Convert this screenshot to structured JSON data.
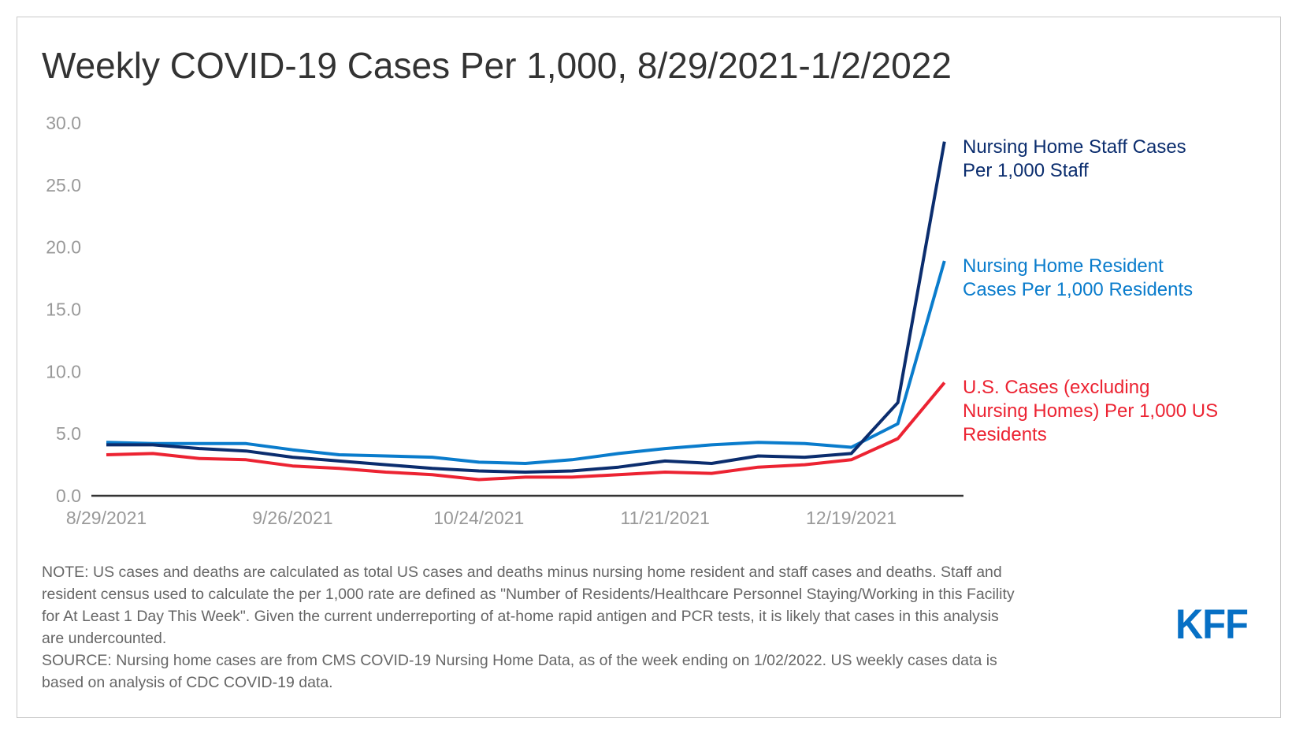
{
  "chart_data": {
    "type": "line",
    "title": "Weekly COVID-19 Cases Per 1,000, 8/29/2021-1/2/2022",
    "x": [
      "8/29/2021",
      "9/5/2021",
      "9/12/2021",
      "9/19/2021",
      "9/26/2021",
      "10/3/2021",
      "10/10/2021",
      "10/17/2021",
      "10/24/2021",
      "10/31/2021",
      "11/7/2021",
      "11/14/2021",
      "11/21/2021",
      "11/28/2021",
      "12/5/2021",
      "12/12/2021",
      "12/19/2021",
      "12/26/2021",
      "1/2/2022"
    ],
    "x_tick_labels": [
      "8/29/2021",
      "9/26/2021",
      "10/24/2021",
      "11/21/2021",
      "12/19/2021"
    ],
    "y_tick_labels": [
      "0.0",
      "5.0",
      "10.0",
      "15.0",
      "20.0",
      "25.0",
      "30.0"
    ],
    "ylim": [
      0,
      30
    ],
    "grid": false,
    "legend": "right (direct labels)",
    "series": [
      {
        "name": "Nursing Home Staff Cases Per 1,000 Staff",
        "label_lines": [
          "Nursing Home Staff Cases",
          "Per 1,000 Staff"
        ],
        "color": "#0b2d6e",
        "values": [
          4.1,
          4.1,
          3.8,
          3.6,
          3.1,
          2.8,
          2.5,
          2.2,
          2.0,
          1.9,
          2.0,
          2.3,
          2.8,
          2.6,
          3.2,
          3.1,
          3.4,
          7.5,
          28.5
        ]
      },
      {
        "name": "Nursing Home Resident Cases Per 1,000 Residents",
        "label_lines": [
          "Nursing Home Resident",
          "Cases Per 1,000 Residents"
        ],
        "color": "#0a7ccc",
        "values": [
          4.3,
          4.2,
          4.2,
          4.2,
          3.7,
          3.3,
          3.2,
          3.1,
          2.7,
          2.6,
          2.9,
          3.4,
          3.8,
          4.1,
          4.3,
          4.2,
          3.9,
          5.8,
          18.9
        ]
      },
      {
        "name": "U.S. Cases (excluding Nursing Homes) Per 1,000 US Residents",
        "label_lines": [
          "U.S. Cases (excluding",
          "Nursing Homes) Per 1,000 US",
          "Residents"
        ],
        "color": "#ec2332",
        "values": [
          3.3,
          3.4,
          3.0,
          2.9,
          2.4,
          2.2,
          1.9,
          1.7,
          1.3,
          1.5,
          1.5,
          1.7,
          1.9,
          1.8,
          2.3,
          2.5,
          2.9,
          4.6,
          9.1
        ]
      }
    ]
  },
  "notes": {
    "note_lines": [
      "NOTE: US cases and deaths are calculated as total US cases and deaths minus nursing home resident and staff cases and deaths. Staff and",
      "resident census used to calculate the per 1,000 rate are defined as \"Number of Residents/Healthcare Personnel Staying/Working in this Facility",
      "for At Least 1 Day This Week\". Given the current underreporting of at-home rapid antigen and PCR tests, it is likely that cases in this analysis",
      "are undercounted."
    ],
    "source_lines": [
      "SOURCE: Nursing home cases are from CMS COVID-19 Nursing Home Data, as of the week ending on 1/02/2022. US weekly cases data is",
      "based on analysis of CDC COVID-19 data."
    ]
  },
  "logo": "KFF",
  "colors": {
    "axis_text": "#999999",
    "logo": "#0770c5"
  }
}
